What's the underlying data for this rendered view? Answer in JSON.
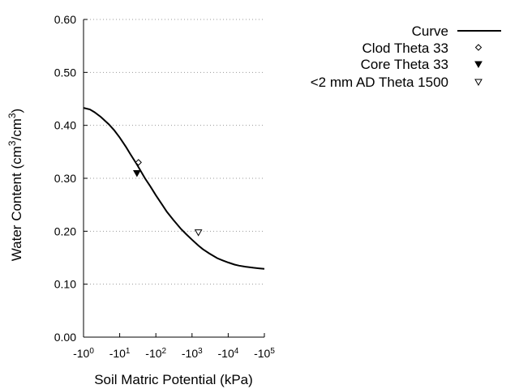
{
  "chart_data": {
    "type": "line",
    "xlabel": "Soil Matric Potential (kPa)",
    "ylabel_main": "Water Content (cm",
    "ylabel_sup1": "3",
    "ylabel_mid": "/cm",
    "ylabel_sup2": "3",
    "ylabel_end": ")",
    "x_scale": "log",
    "x_sign": "negative",
    "xlim": [
      1,
      100000
    ],
    "x_ticks": [
      {
        "base": "-10",
        "exp": "0"
      },
      {
        "base": "-10",
        "exp": "1"
      },
      {
        "base": "-10",
        "exp": "2"
      },
      {
        "base": "-10",
        "exp": "3"
      },
      {
        "base": "-10",
        "exp": "4"
      },
      {
        "base": "-10",
        "exp": "5"
      }
    ],
    "ylim": [
      0,
      0.6
    ],
    "y_ticks": [
      "0.00",
      "0.10",
      "0.20",
      "0.30",
      "0.40",
      "0.50",
      "0.60"
    ],
    "grid": "horizontal dotted",
    "legend_position": "top-right, outside plot",
    "series": [
      {
        "name": "Curve",
        "kind": "line",
        "color": "#000000",
        "x": [
          1,
          1.5,
          2,
          3,
          5,
          7,
          10,
          15,
          20,
          30,
          50,
          70,
          100,
          150,
          200,
          300,
          500,
          700,
          1000,
          1500,
          2000,
          3000,
          5000,
          7000,
          10000,
          15000,
          20000,
          30000,
          50000,
          70000,
          100000
        ],
        "y": [
          0.433,
          0.43,
          0.425,
          0.416,
          0.402,
          0.391,
          0.377,
          0.359,
          0.345,
          0.326,
          0.3,
          0.285,
          0.268,
          0.25,
          0.237,
          0.222,
          0.204,
          0.194,
          0.184,
          0.173,
          0.166,
          0.158,
          0.149,
          0.145,
          0.141,
          0.137,
          0.135,
          0.133,
          0.131,
          0.13,
          0.129
        ]
      },
      {
        "name": "Clod Theta 33",
        "kind": "marker",
        "marker": "diamond-open",
        "x": [
          33
        ],
        "y": [
          0.33
        ]
      },
      {
        "name": "Core Theta 33",
        "kind": "marker",
        "marker": "triangle-down-filled",
        "x": [
          30
        ],
        "y": [
          0.31
        ]
      },
      {
        "name": "<2 mm AD Theta 1500",
        "kind": "marker",
        "marker": "triangle-down-open",
        "x": [
          1500
        ],
        "y": [
          0.198
        ]
      }
    ]
  }
}
